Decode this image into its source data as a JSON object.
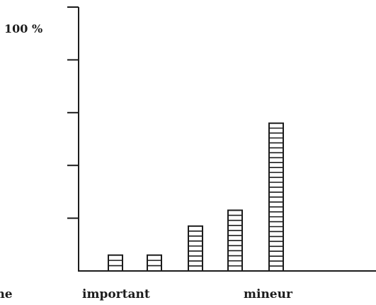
{
  "chart_data": {
    "type": "bar",
    "title": "",
    "xlabel": "",
    "ylabel": "",
    "ylim": [
      0,
      100
    ],
    "y_tick_labels": [
      "100 %"
    ],
    "x_axis_labels": [
      "ème",
      "important",
      "mineur"
    ],
    "categories": [
      "",
      "",
      "",
      "",
      ""
    ],
    "values": [
      6,
      6,
      17,
      23,
      56
    ],
    "bar_fill": "hatched-stacked-boxes",
    "grid": false,
    "legend": "none"
  },
  "colors": {
    "ink": "#1c1c1c",
    "background": "#ffffff"
  }
}
